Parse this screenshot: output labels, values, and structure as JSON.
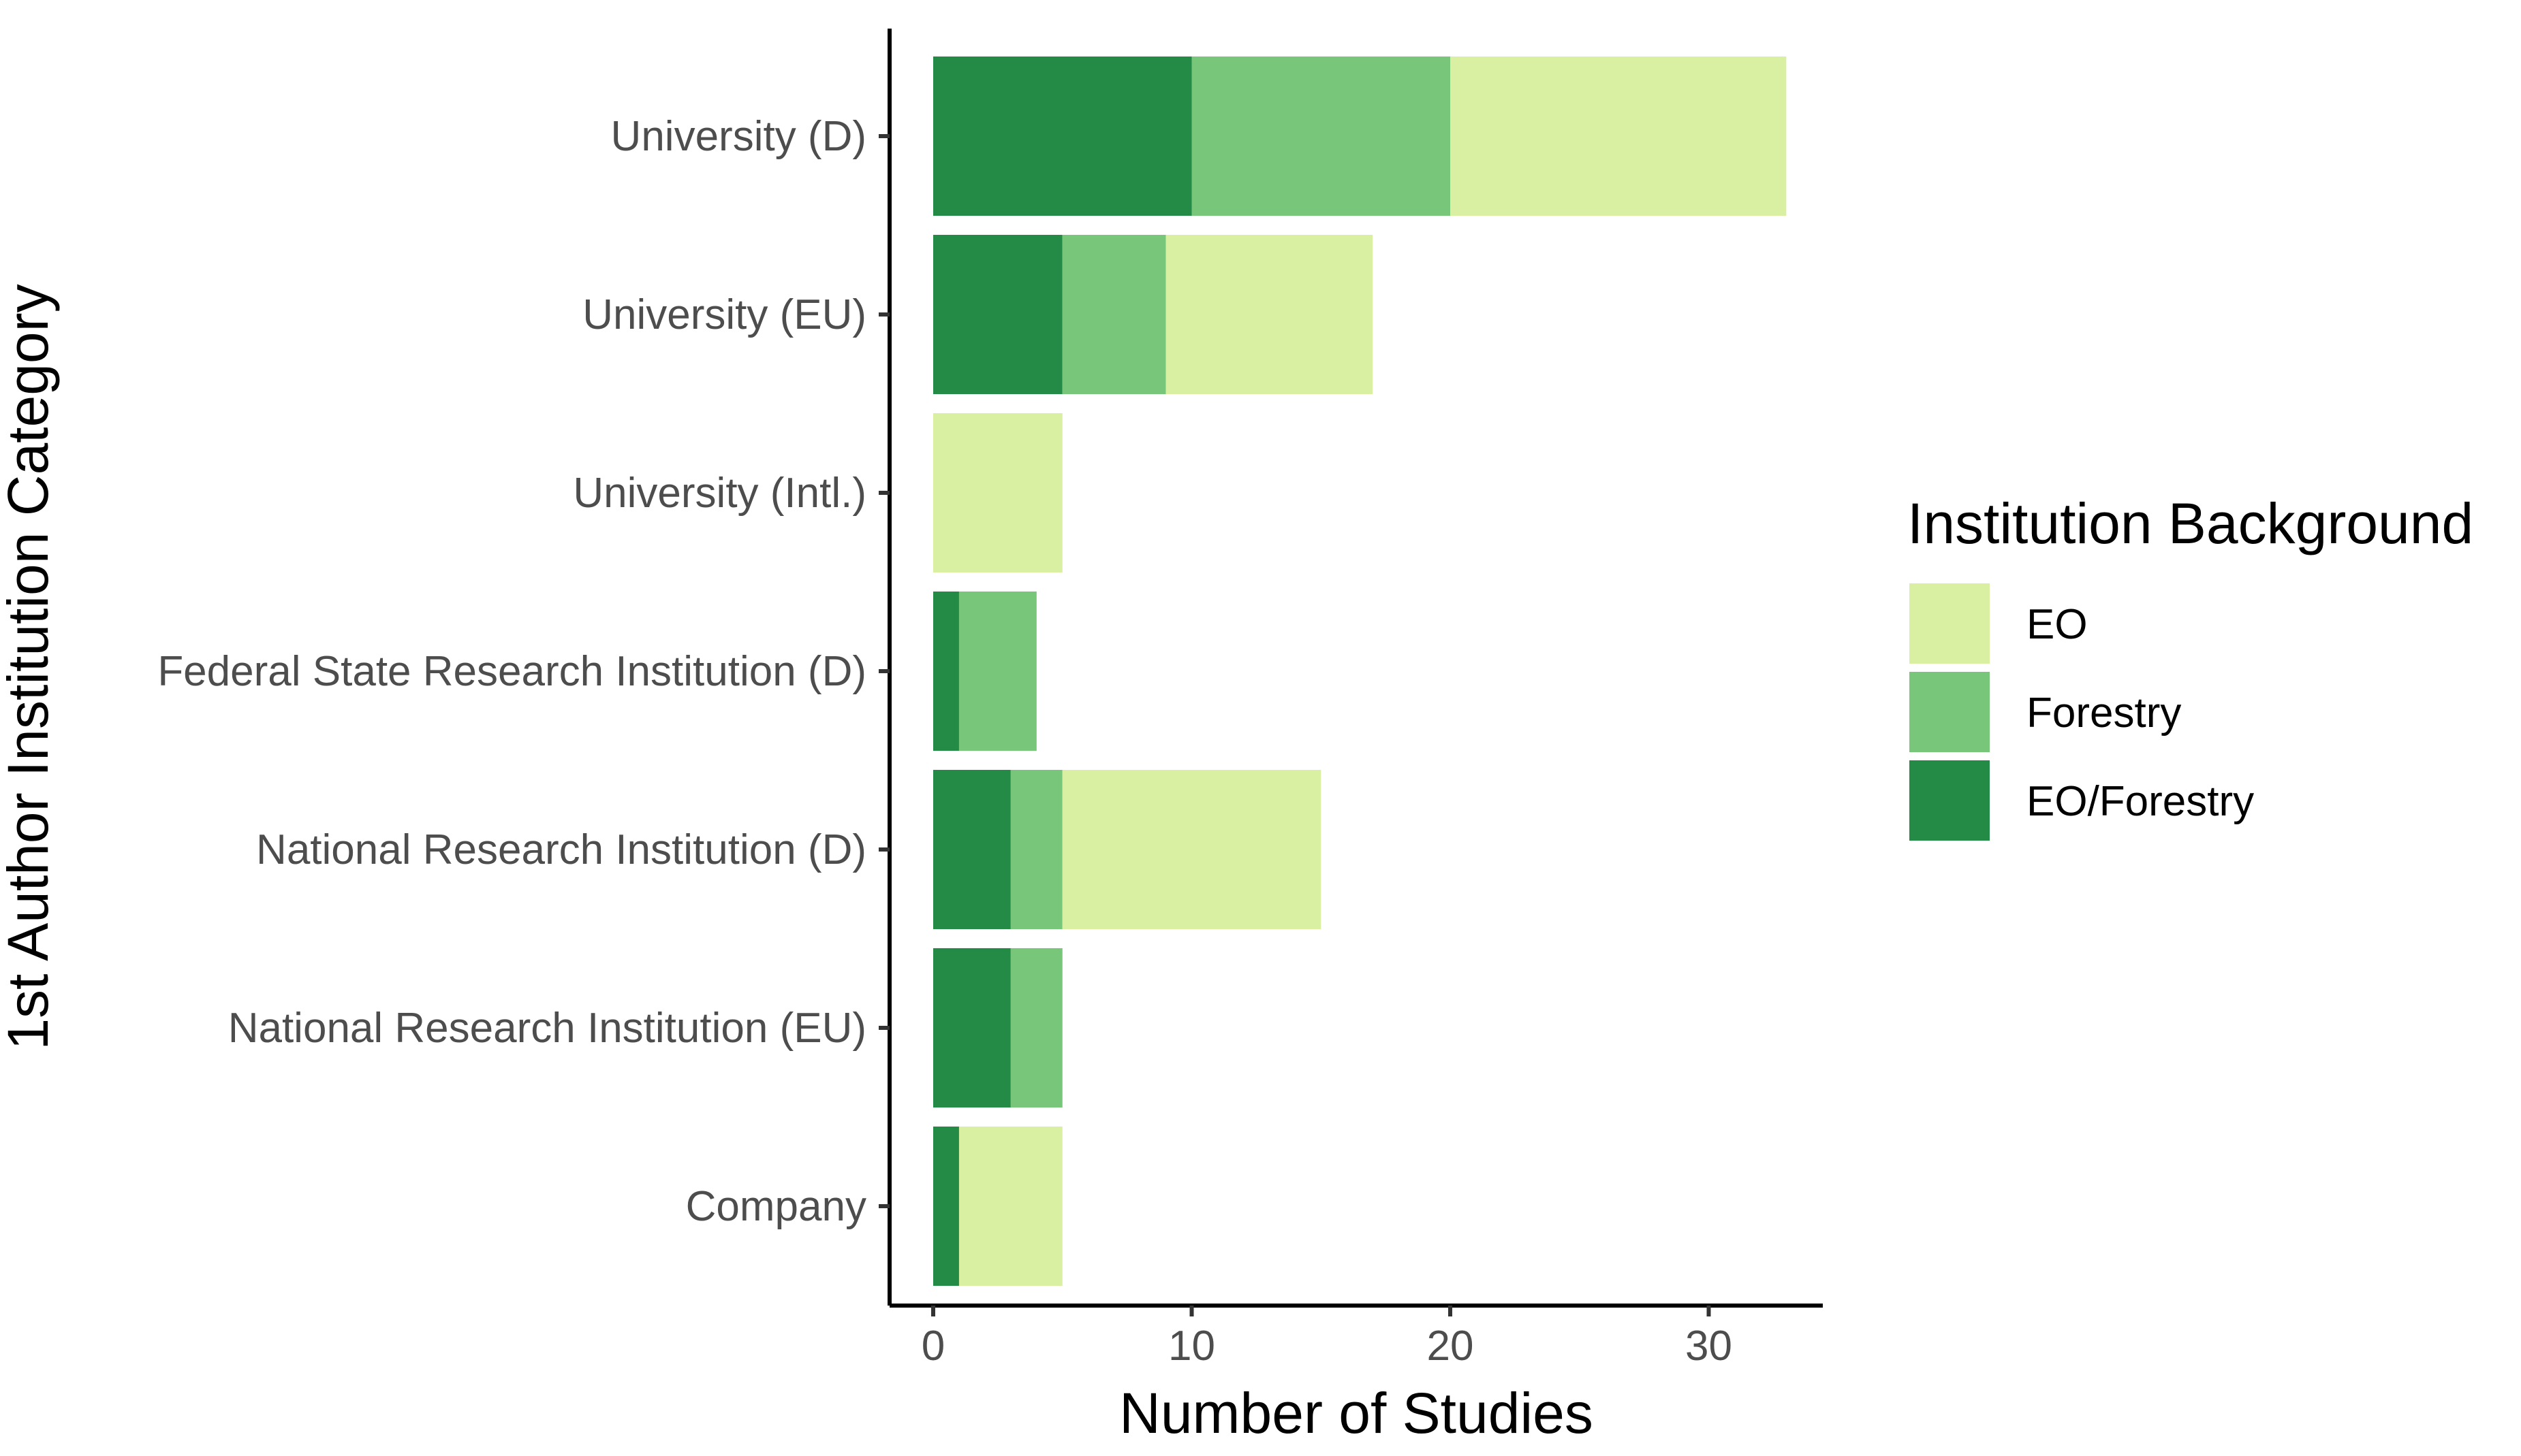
{
  "chart_data": {
    "type": "bar",
    "orientation": "horizontal",
    "stacked": true,
    "categories": [
      "University (D)",
      "University (EU)",
      "University (Intl.)",
      "Federal State Research Institution (D)",
      "National Research Institution (D)",
      "National Research Institution (EU)",
      "Company"
    ],
    "series": [
      {
        "name": "EO/Forestry",
        "color": "#238b45",
        "values": [
          10,
          5,
          0,
          1,
          3,
          3,
          1
        ]
      },
      {
        "name": "Forestry",
        "color": "#78c679",
        "values": [
          10,
          4,
          0,
          3,
          2,
          2,
          0
        ]
      },
      {
        "name": "EO",
        "color": "#d9f0a3",
        "values": [
          13,
          8,
          5,
          0,
          10,
          0,
          4
        ]
      }
    ],
    "xlabel": "Number of Studies",
    "ylabel": "1st Author Institution Category",
    "xlim": [
      0,
      35
    ],
    "x_ticks": [
      0,
      10,
      20,
      30
    ],
    "grid": false,
    "legend": {
      "title": "Institution Background",
      "placement": "right",
      "entries": [
        "EO",
        "Forestry",
        "EO/Forestry"
      ]
    }
  }
}
